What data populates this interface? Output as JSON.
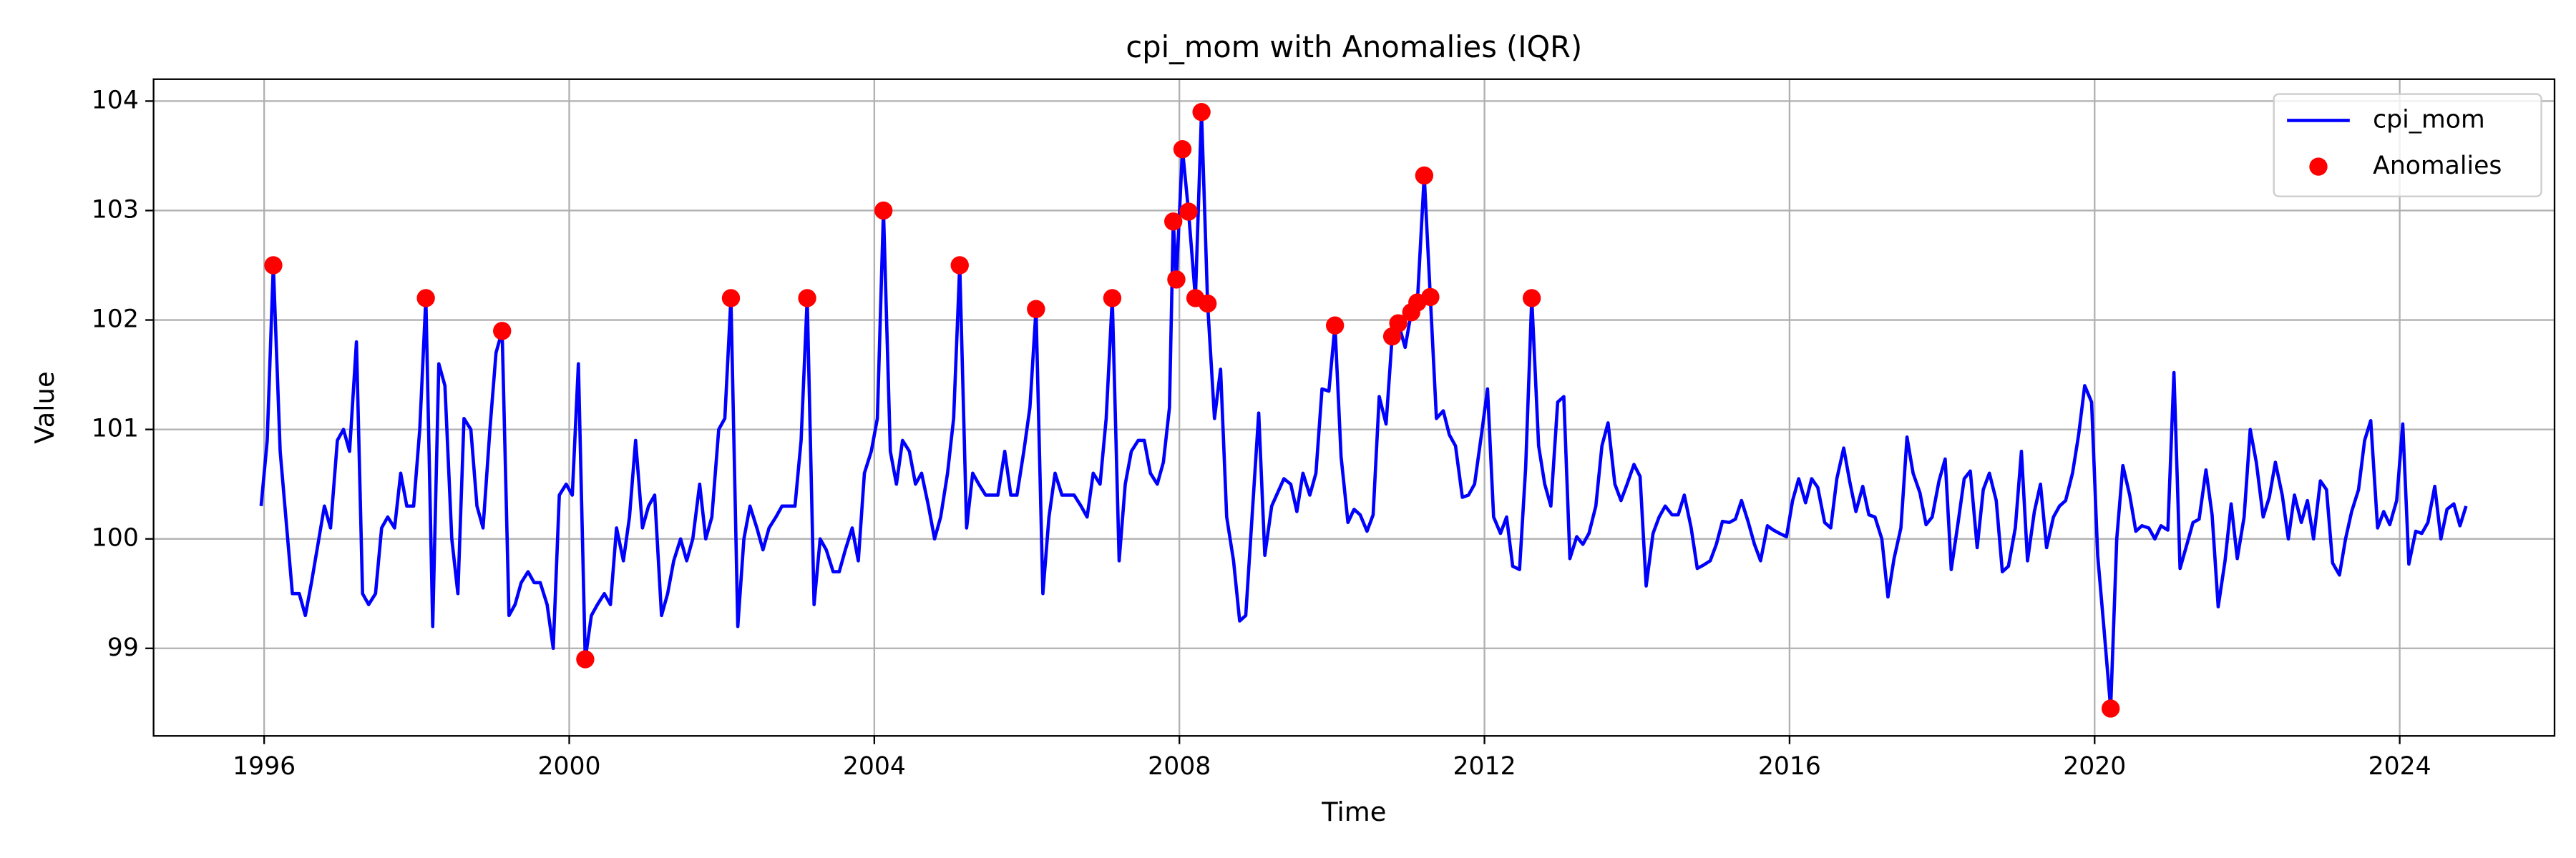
{
  "chart_data": {
    "type": "line",
    "title": "cpi_mom with Anomalies (IQR)",
    "xlabel": "Time",
    "ylabel": "Value",
    "xlim": [
      1994.55,
      2026.03
    ],
    "ylim": [
      98.2,
      104.2
    ],
    "xticks": [
      1996,
      2000,
      2004,
      2008,
      2012,
      2016,
      2020,
      2024
    ],
    "yticks": [
      99,
      100,
      101,
      102,
      103,
      104
    ],
    "grid": true,
    "legend": "upper right",
    "series": [
      {
        "name": "cpi_mom",
        "color": "#0000ff",
        "type": "line",
        "x": [
          1995.96,
          1996.04,
          1996.12,
          1996.21,
          1996.37,
          1996.46,
          1996.54,
          1996.62,
          1996.79,
          1996.87,
          1996.96,
          1997.04,
          1997.12,
          1997.21,
          1997.29,
          1997.37,
          1997.46,
          1997.54,
          1997.62,
          1997.71,
          1997.79,
          1997.87,
          1997.96,
          1998.04,
          1998.12,
          1998.21,
          1998.29,
          1998.37,
          1998.46,
          1998.54,
          1998.62,
          1998.71,
          1998.79,
          1998.87,
          1998.96,
          1999.04,
          1999.12,
          1999.21,
          1999.29,
          1999.37,
          1999.46,
          1999.54,
          1999.62,
          1999.71,
          1999.79,
          1999.87,
          1999.96,
          2000.04,
          2000.12,
          2000.21,
          2000.29,
          2000.37,
          2000.46,
          2000.54,
          2000.62,
          2000.71,
          2000.79,
          2000.87,
          2000.96,
          2001.04,
          2001.12,
          2001.21,
          2001.29,
          2001.37,
          2001.46,
          2001.54,
          2001.62,
          2001.71,
          2001.79,
          2001.87,
          2001.96,
          2002.04,
          2002.12,
          2002.21,
          2002.29,
          2002.37,
          2002.46,
          2002.54,
          2002.62,
          2002.71,
          2002.79,
          2002.96,
          2003.04,
          2003.12,
          2003.21,
          2003.29,
          2003.37,
          2003.46,
          2003.54,
          2003.62,
          2003.71,
          2003.79,
          2003.87,
          2003.96,
          2004.04,
          2004.12,
          2004.21,
          2004.29,
          2004.37,
          2004.46,
          2004.54,
          2004.62,
          2004.71,
          2004.79,
          2004.87,
          2004.96,
          2005.04,
          2005.12,
          2005.21,
          2005.29,
          2005.37,
          2005.46,
          2005.62,
          2005.71,
          2005.79,
          2005.87,
          2005.96,
          2006.04,
          2006.12,
          2006.21,
          2006.29,
          2006.37,
          2006.46,
          2006.62,
          2006.71,
          2006.79,
          2006.87,
          2006.96,
          2007.04,
          2007.12,
          2007.21,
          2007.29,
          2007.37,
          2007.46,
          2007.54,
          2007.62,
          2007.71,
          2007.79,
          2007.87,
          2007.92,
          2007.96,
          2008.04,
          2008.12,
          2008.21,
          2008.29,
          2008.37,
          2008.46,
          2008.54,
          2008.62,
          2008.71,
          2008.79,
          2008.87,
          2009.04,
          2009.12,
          2009.21,
          2009.37,
          2009.46,
          2009.54,
          2009.62,
          2009.71,
          2009.79,
          2009.87,
          2009.96,
          2010.04,
          2010.12,
          2010.21,
          2010.29,
          2010.37,
          2010.46,
          2010.54,
          2010.62,
          2010.71,
          2010.79,
          2010.87,
          2010.96,
          2011.04,
          2011.12,
          2011.21,
          2011.29,
          2011.37,
          2011.46,
          2011.54,
          2011.62,
          2011.71,
          2011.79,
          2011.87,
          2011.96,
          2012.04,
          2012.12,
          2012.21,
          2012.29,
          2012.37,
          2012.46,
          2012.54,
          2012.62,
          2012.71,
          2012.79,
          2012.87,
          2012.96,
          2013.04,
          2013.12,
          2013.21,
          2013.29,
          2013.37,
          2013.46,
          2013.54,
          2013.62,
          2013.71,
          2013.79,
          2013.87,
          2013.96,
          2014.04,
          2014.12,
          2014.21,
          2014.29,
          2014.37,
          2014.46,
          2014.54,
          2014.62,
          2014.71,
          2014.79,
          2014.87,
          2014.96,
          2015.04,
          2015.12,
          2015.21,
          2015.29,
          2015.37,
          2015.46,
          2015.54,
          2015.62,
          2015.71,
          2015.79,
          2015.87,
          2015.96,
          2016.04,
          2016.12,
          2016.21,
          2016.29,
          2016.37,
          2016.46,
          2016.54,
          2016.62,
          2016.71,
          2016.79,
          2016.87,
          2016.96,
          2017.04,
          2017.12,
          2017.21,
          2017.29,
          2017.37,
          2017.46,
          2017.54,
          2017.62,
          2017.71,
          2017.79,
          2017.87,
          2017.96,
          2018.04,
          2018.12,
          2018.21,
          2018.29,
          2018.37,
          2018.46,
          2018.54,
          2018.62,
          2018.71,
          2018.79,
          2018.87,
          2018.96,
          2019.04,
          2019.12,
          2019.21,
          2019.29,
          2019.37,
          2019.46,
          2019.54,
          2019.62,
          2019.71,
          2019.79,
          2019.87,
          2019.96,
          2020.04,
          2020.12,
          2020.21,
          2020.29,
          2020.37,
          2020.46,
          2020.54,
          2020.62,
          2020.71,
          2020.79,
          2020.87,
          2020.96,
          2021.04,
          2021.12,
          2021.21,
          2021.29,
          2021.37,
          2021.46,
          2021.54,
          2021.62,
          2021.71,
          2021.79,
          2021.87,
          2021.96,
          2022.04,
          2022.12,
          2022.21,
          2022.29,
          2022.37,
          2022.46,
          2022.54,
          2022.62,
          2022.71,
          2022.79,
          2022.87,
          2022.96,
          2023.04,
          2023.12,
          2023.21,
          2023.29,
          2023.37,
          2023.46,
          2023.54,
          2023.62,
          2023.71,
          2023.79,
          2023.87,
          2023.96,
          2024.04,
          2024.12,
          2024.21,
          2024.29,
          2024.37,
          2024.46,
          2024.54,
          2024.62,
          2024.71,
          2024.79,
          2024.87
        ],
        "values": [
          100.3,
          100.9,
          102.5,
          100.8,
          99.5,
          99.5,
          99.3,
          99.6,
          100.3,
          100.1,
          100.9,
          101.0,
          100.8,
          101.8,
          99.5,
          99.4,
          99.5,
          100.1,
          100.2,
          100.1,
          100.6,
          100.3,
          100.3,
          101.0,
          102.2,
          99.2,
          101.6,
          101.4,
          100.0,
          99.5,
          101.1,
          101.0,
          100.3,
          100.1,
          101.0,
          101.7,
          101.9,
          99.3,
          99.4,
          99.6,
          99.7,
          99.6,
          99.6,
          99.4,
          99.0,
          100.4,
          100.5,
          100.4,
          101.6,
          98.9,
          99.3,
          99.4,
          99.5,
          99.4,
          100.1,
          99.8,
          100.2,
          100.9,
          100.1,
          100.3,
          100.4,
          99.3,
          99.5,
          99.8,
          100.0,
          99.8,
          100.0,
          100.5,
          100.0,
          100.2,
          101.0,
          101.1,
          102.2,
          99.2,
          100.0,
          100.3,
          100.1,
          99.9,
          100.1,
          100.2,
          100.3,
          100.3,
          100.9,
          102.2,
          99.4,
          100.0,
          99.9,
          99.7,
          99.7,
          99.9,
          100.1,
          99.8,
          100.6,
          100.8,
          101.1,
          103.0,
          100.8,
          100.5,
          100.9,
          100.8,
          100.5,
          100.6,
          100.3,
          100.0,
          100.2,
          100.6,
          101.1,
          102.5,
          100.1,
          100.6,
          100.5,
          100.4,
          100.4,
          100.8,
          100.4,
          100.4,
          100.8,
          101.2,
          102.1,
          99.5,
          100.2,
          100.6,
          100.4,
          100.4,
          100.3,
          100.2,
          100.6,
          100.5,
          101.1,
          102.2,
          99.8,
          100.5,
          100.8,
          100.9,
          100.9,
          100.6,
          100.5,
          100.7,
          101.2,
          102.9,
          102.37,
          103.56,
          102.99,
          102.2,
          103.9,
          102.15,
          101.1,
          101.55,
          100.2,
          99.8,
          99.25,
          99.3,
          101.15,
          99.85,
          100.3,
          100.55,
          100.5,
          100.25,
          100.6,
          100.4,
          100.6,
          101.37,
          101.35,
          101.95,
          100.75,
          100.15,
          100.27,
          100.22,
          100.07,
          100.22,
          101.3,
          101.05,
          101.85,
          101.97,
          101.75,
          102.07,
          102.16,
          103.32,
          102.21,
          101.1,
          101.17,
          100.95,
          100.85,
          100.38,
          100.4,
          100.5,
          100.95,
          101.37,
          100.2,
          100.05,
          100.2,
          99.75,
          99.72,
          100.65,
          102.2,
          100.85,
          100.5,
          100.3,
          101.25,
          101.3,
          99.82,
          100.02,
          99.95,
          100.05,
          100.3,
          100.85,
          101.06,
          100.5,
          100.35,
          100.5,
          100.68,
          100.57,
          99.57,
          100.05,
          100.2,
          100.3,
          100.22,
          100.22,
          100.4,
          100.1,
          99.73,
          99.76,
          99.8,
          99.95,
          100.16,
          100.15,
          100.18,
          100.35,
          100.15,
          99.95,
          99.8,
          100.12,
          100.08,
          100.05,
          100.02,
          100.35,
          100.55,
          100.33,
          100.55,
          100.47,
          100.15,
          100.1,
          100.55,
          100.83,
          100.52,
          100.25,
          100.48,
          100.22,
          100.2,
          100.0,
          99.47,
          99.82,
          100.1,
          100.93,
          100.6,
          100.42,
          100.13,
          100.2,
          100.53,
          100.73,
          99.72,
          100.15,
          100.55,
          100.62,
          99.92,
          100.45,
          100.6,
          100.35,
          99.7,
          99.75,
          100.1,
          100.8,
          99.8,
          100.25,
          100.5,
          99.92,
          100.2,
          100.3,
          100.35,
          100.6,
          100.95,
          101.4,
          101.25,
          99.85,
          99.2,
          98.45,
          100.0,
          100.67,
          100.4,
          100.07,
          100.12,
          100.1,
          100.0,
          100.12,
          100.08,
          101.52,
          99.73,
          99.95,
          100.15,
          100.18,
          100.63,
          100.22,
          99.38,
          99.8,
          100.32,
          99.82,
          100.2,
          101.0,
          100.7,
          100.2,
          100.38,
          100.7,
          100.4,
          100.0,
          100.4,
          100.15,
          100.35,
          100.0,
          100.53,
          100.45,
          99.78,
          99.67,
          100.0,
          100.25,
          100.45,
          100.9,
          101.08,
          100.1,
          100.25,
          100.13,
          100.35,
          101.05,
          99.77,
          100.07,
          100.05,
          100.15,
          100.48,
          100.0,
          100.27,
          100.32,
          100.12,
          100.3
        ]
      },
      {
        "name": "Anomalies",
        "color": "#ff0000",
        "type": "scatter",
        "x": [
          1996.12,
          1998.12,
          1999.12,
          2000.21,
          2002.12,
          2003.12,
          2004.12,
          2005.12,
          2006.12,
          2007.12,
          2007.92,
          2007.96,
          2008.04,
          2008.12,
          2008.21,
          2008.29,
          2008.37,
          2010.04,
          2010.79,
          2010.87,
          2011.04,
          2011.12,
          2011.21,
          2011.29,
          2012.62,
          2020.21
        ],
        "values": [
          102.5,
          102.2,
          101.9,
          98.9,
          102.2,
          102.2,
          103.0,
          102.5,
          102.1,
          102.2,
          102.9,
          102.37,
          103.56,
          102.99,
          102.2,
          103.9,
          102.15,
          101.95,
          101.85,
          101.97,
          102.07,
          102.16,
          103.32,
          102.21,
          102.2,
          98.45
        ]
      }
    ]
  }
}
